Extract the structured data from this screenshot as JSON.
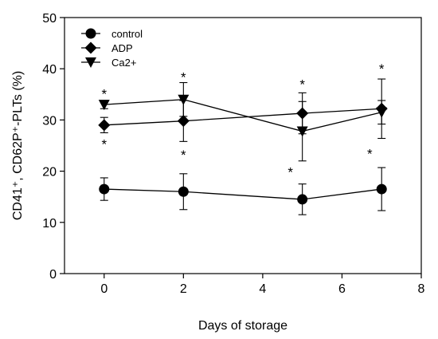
{
  "chart_data": {
    "type": "line",
    "title": "",
    "xlabel": "Days of storage",
    "ylabel": "CD41⁺, CD62P⁺-PLTs (%)",
    "xlim": [
      -1,
      8
    ],
    "ylim": [
      0,
      50
    ],
    "x_ticks": [
      0,
      2,
      4,
      6,
      8
    ],
    "y_ticks": [
      0,
      10,
      20,
      30,
      40,
      50
    ],
    "grid": false,
    "legend_position": "top-left",
    "series": [
      {
        "name": "control",
        "marker": "circle",
        "x": [
          0,
          2,
          5,
          7
        ],
        "y": [
          16.5,
          16.0,
          14.5,
          16.5
        ],
        "err": [
          2.2,
          3.5,
          3.0,
          4.2
        ]
      },
      {
        "name": "ADP",
        "marker": "diamond",
        "x": [
          0,
          2,
          5,
          7
        ],
        "y": [
          29.0,
          29.8,
          31.3,
          32.2
        ],
        "err": [
          1.5,
          4.0,
          4.0,
          5.8
        ]
      },
      {
        "name": "Ca2+",
        "marker": "triangle-down",
        "x": [
          0,
          2,
          5,
          7
        ],
        "y": [
          33.0,
          34.0,
          27.8,
          31.5
        ],
        "err": [
          0.8,
          3.3,
          5.8,
          2.3
        ]
      }
    ],
    "annotations": [
      {
        "text": "*",
        "x": 0,
        "y": 35.6
      },
      {
        "text": "*",
        "x": 2,
        "y": 38.9
      },
      {
        "text": "*",
        "x": 5,
        "y": 37.5
      },
      {
        "text": "*",
        "x": 7,
        "y": 40.5
      },
      {
        "text": "*",
        "x": 0,
        "y": 25.8
      },
      {
        "text": "*",
        "x": 2,
        "y": 23.7
      },
      {
        "text": "*",
        "x": 4.7,
        "y": 20.3
      },
      {
        "text": "*",
        "x": 6.7,
        "y": 23.9
      }
    ]
  }
}
